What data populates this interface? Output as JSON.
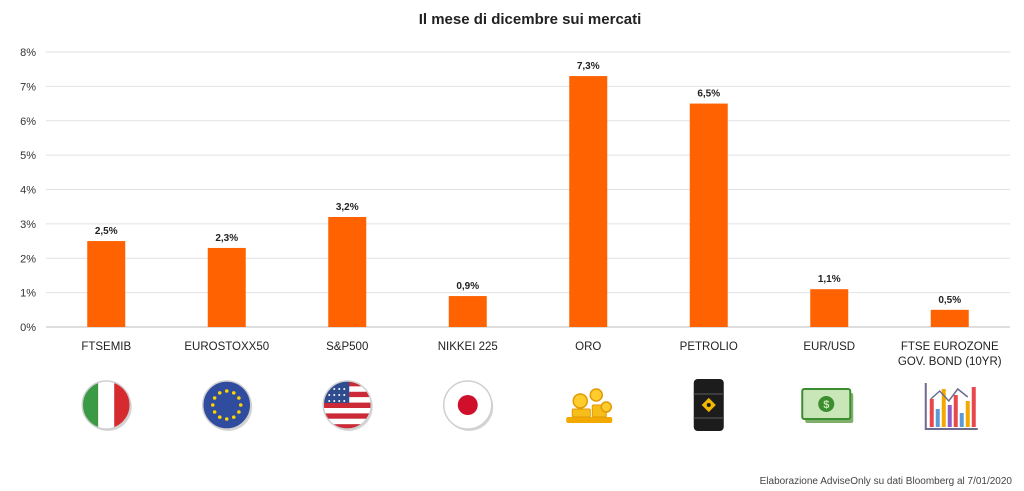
{
  "chart_data": {
    "type": "bar",
    "title": "Il mese di dicembre sui mercati",
    "xlabel": "",
    "ylabel": "",
    "ylim": [
      0,
      8
    ],
    "yticks": [
      "0%",
      "1%",
      "2%",
      "3%",
      "4%",
      "5%",
      "6%",
      "7%",
      "8%"
    ],
    "grid": true,
    "categories": [
      [
        "FTSEMIB"
      ],
      [
        "EUROSTOXX50"
      ],
      [
        "S&P500"
      ],
      [
        "NIKKEI 225"
      ],
      [
        "ORO"
      ],
      [
        "PETROLIO"
      ],
      [
        "EUR/USD"
      ],
      [
        "FTSE EUROZONE",
        "GOV. BOND (10YR)"
      ]
    ],
    "values": [
      2.5,
      2.3,
      3.2,
      0.9,
      7.3,
      6.5,
      1.1,
      0.5
    ],
    "data_labels": [
      "2,5%",
      "2,3%",
      "3,2%",
      "0,9%",
      "7,3%",
      "6,5%",
      "1,1%",
      "0,5%"
    ],
    "bar_color": "#FF6200",
    "icons": [
      "italy-flag-icon",
      "eu-flag-icon",
      "us-flag-icon",
      "japan-flag-icon",
      "gold-coins-icon",
      "oil-barrel-icon",
      "dollar-banknote-icon",
      "bar-chart-icon"
    ]
  },
  "footer": {
    "credit": "Elaborazione AdviseOnly su dati Bloomberg al 7/01/2020"
  }
}
